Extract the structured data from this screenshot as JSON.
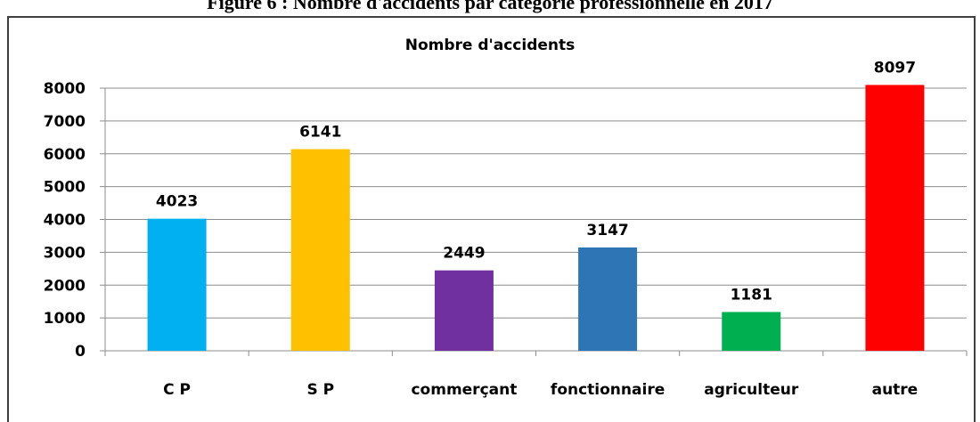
{
  "caption": "Figure 6 : Nombre d'accidents par catégorie professionnelle en 2017",
  "chart_data": {
    "type": "bar",
    "title": "Nombre d'accidents",
    "categories": [
      "C P",
      "S P",
      "commerçant",
      "fonctionnaire",
      "agriculteur",
      "autre"
    ],
    "values": [
      4023,
      6141,
      2449,
      3147,
      1181,
      8097
    ],
    "colors": [
      "#00b0f0",
      "#ffc000",
      "#7030a0",
      "#2e75b6",
      "#00b050",
      "#ff0000"
    ],
    "ylim": [
      0,
      8000
    ],
    "yticks": [
      0,
      1000,
      2000,
      3000,
      4000,
      5000,
      6000,
      7000,
      8000
    ],
    "grid": true
  }
}
